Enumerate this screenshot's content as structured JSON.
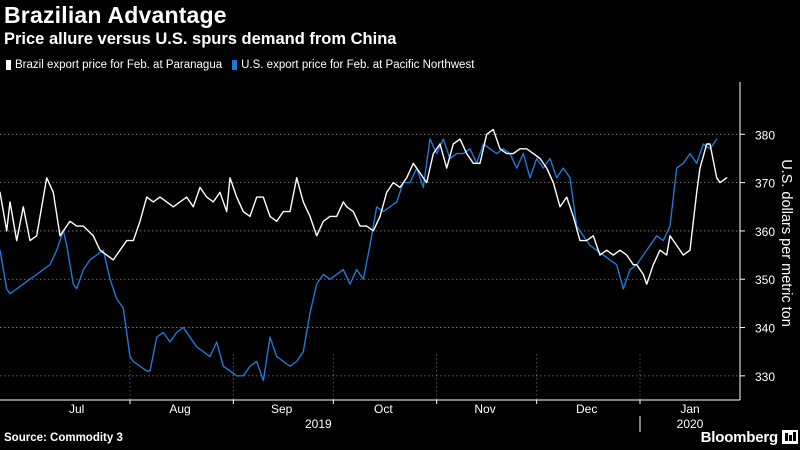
{
  "header": {
    "title": "Brazilian Advantage",
    "subtitle": "Price allure versus U.S. spurs demand from China"
  },
  "footer": {
    "source": "Source: Commodity 3",
    "brand": "Bloomberg"
  },
  "colors": {
    "background": "#000000",
    "brazil": "#ffffff",
    "us": "#1f78d7",
    "grid": "#888888",
    "axis": "#ffffff"
  },
  "chart_data": {
    "type": "line",
    "title": "Brazilian Advantage",
    "subtitle": "Price allure versus U.S. spurs demand from China",
    "ylabel": "U.S. dollars per metric ton",
    "y_axis_position": "right",
    "ylim": [
      325,
      390
    ],
    "yticks": [
      330,
      340,
      350,
      360,
      370,
      380
    ],
    "grid": "horizontal dotted",
    "legend_position": "top-left",
    "x_range": [
      "2019-06-23",
      "2020-01-31"
    ],
    "month_ticks": [
      {
        "label": "Jul",
        "start": "2019-07-01",
        "end": "2019-07-31"
      },
      {
        "label": "Aug",
        "start": "2019-08-01",
        "end": "2019-08-31"
      },
      {
        "label": "Sep",
        "start": "2019-09-01",
        "end": "2019-09-30"
      },
      {
        "label": "Oct",
        "start": "2019-10-01",
        "end": "2019-10-31"
      },
      {
        "label": "Nov",
        "start": "2019-11-01",
        "end": "2019-11-30"
      },
      {
        "label": "Dec",
        "start": "2019-12-01",
        "end": "2019-12-31"
      },
      {
        "label": "Jan",
        "start": "2020-01-01",
        "end": "2020-01-31"
      }
    ],
    "year_labels": [
      {
        "label": "2019",
        "start": "2019-06-23",
        "end": "2019-12-31"
      },
      {
        "label": "2020",
        "start": "2020-01-01",
        "end": "2020-01-31"
      }
    ],
    "series": [
      {
        "name": "Brazil export price for Feb. at Paranagua",
        "color": "#ffffff",
        "points": [
          [
            "2019-06-23",
            368
          ],
          [
            "2019-06-25",
            360
          ],
          [
            "2019-06-26",
            366
          ],
          [
            "2019-06-28",
            358
          ],
          [
            "2019-06-30",
            365
          ],
          [
            "2019-07-02",
            358
          ],
          [
            "2019-07-04",
            359
          ],
          [
            "2019-07-07",
            371
          ],
          [
            "2019-07-09",
            368
          ],
          [
            "2019-07-11",
            359
          ],
          [
            "2019-07-12",
            360
          ],
          [
            "2019-07-14",
            362
          ],
          [
            "2019-07-16",
            361
          ],
          [
            "2019-07-18",
            361
          ],
          [
            "2019-07-21",
            359
          ],
          [
            "2019-07-23",
            356
          ],
          [
            "2019-07-25",
            355
          ],
          [
            "2019-07-27",
            354
          ],
          [
            "2019-07-29",
            356
          ],
          [
            "2019-07-31",
            358
          ],
          [
            "2019-08-02",
            358
          ],
          [
            "2019-08-04",
            362
          ],
          [
            "2019-08-06",
            367
          ],
          [
            "2019-08-08",
            366
          ],
          [
            "2019-08-10",
            367
          ],
          [
            "2019-08-12",
            366
          ],
          [
            "2019-08-14",
            365
          ],
          [
            "2019-08-16",
            366
          ],
          [
            "2019-08-18",
            367
          ],
          [
            "2019-08-20",
            365
          ],
          [
            "2019-08-22",
            369
          ],
          [
            "2019-08-24",
            367
          ],
          [
            "2019-08-26",
            366
          ],
          [
            "2019-08-28",
            368
          ],
          [
            "2019-08-30",
            364
          ],
          [
            "2019-08-31",
            371
          ],
          [
            "2019-09-02",
            367
          ],
          [
            "2019-09-04",
            364
          ],
          [
            "2019-09-06",
            363
          ],
          [
            "2019-09-08",
            367
          ],
          [
            "2019-09-10",
            367
          ],
          [
            "2019-09-12",
            363
          ],
          [
            "2019-09-14",
            362
          ],
          [
            "2019-09-16",
            364
          ],
          [
            "2019-09-18",
            364
          ],
          [
            "2019-09-20",
            371
          ],
          [
            "2019-09-22",
            366
          ],
          [
            "2019-09-24",
            363
          ],
          [
            "2019-09-26",
            359
          ],
          [
            "2019-09-28",
            362
          ],
          [
            "2019-09-30",
            363
          ],
          [
            "2019-10-02",
            363
          ],
          [
            "2019-10-04",
            366
          ],
          [
            "2019-10-05",
            365
          ],
          [
            "2019-10-07",
            364
          ],
          [
            "2019-10-09",
            361
          ],
          [
            "2019-10-11",
            361
          ],
          [
            "2019-10-13",
            360
          ],
          [
            "2019-10-15",
            363
          ],
          [
            "2019-10-17",
            368
          ],
          [
            "2019-10-19",
            370
          ],
          [
            "2019-10-21",
            369
          ],
          [
            "2019-10-23",
            371
          ],
          [
            "2019-10-25",
            374
          ],
          [
            "2019-10-27",
            372
          ],
          [
            "2019-10-29",
            370
          ],
          [
            "2019-10-31",
            376
          ],
          [
            "2019-11-02",
            378
          ],
          [
            "2019-11-04",
            373
          ],
          [
            "2019-11-06",
            378
          ],
          [
            "2019-11-08",
            379
          ],
          [
            "2019-11-10",
            376
          ],
          [
            "2019-11-12",
            374
          ],
          [
            "2019-11-14",
            374
          ],
          [
            "2019-11-16",
            380
          ],
          [
            "2019-11-18",
            381
          ],
          [
            "2019-11-20",
            377
          ],
          [
            "2019-11-22",
            376
          ],
          [
            "2019-11-24",
            376
          ],
          [
            "2019-11-26",
            377
          ],
          [
            "2019-11-28",
            377
          ],
          [
            "2019-11-30",
            376
          ],
          [
            "2019-12-02",
            375
          ],
          [
            "2019-12-04",
            373
          ],
          [
            "2019-12-06",
            370
          ],
          [
            "2019-12-08",
            365
          ],
          [
            "2019-12-10",
            367
          ],
          [
            "2019-12-12",
            363
          ],
          [
            "2019-12-14",
            358
          ],
          [
            "2019-12-16",
            358
          ],
          [
            "2019-12-18",
            359
          ],
          [
            "2019-12-20",
            355
          ],
          [
            "2019-12-22",
            356
          ],
          [
            "2019-12-24",
            355
          ],
          [
            "2019-12-26",
            356
          ],
          [
            "2019-12-28",
            355
          ],
          [
            "2019-12-30",
            353
          ],
          [
            "2019-12-31",
            353
          ],
          [
            "2020-01-02",
            351
          ],
          [
            "2020-01-03",
            349
          ],
          [
            "2020-01-05",
            353
          ],
          [
            "2020-01-07",
            356
          ],
          [
            "2020-01-09",
            355
          ],
          [
            "2020-01-10",
            359
          ],
          [
            "2020-01-12",
            357
          ],
          [
            "2020-01-14",
            355
          ],
          [
            "2020-01-16",
            356
          ],
          [
            "2020-01-18",
            368
          ],
          [
            "2020-01-19",
            373
          ],
          [
            "2020-01-21",
            378
          ],
          [
            "2020-01-22",
            378
          ],
          [
            "2020-01-24",
            371
          ],
          [
            "2020-01-25",
            370
          ],
          [
            "2020-01-27",
            371
          ]
        ]
      },
      {
        "name": "U.S. export price for Feb. at Pacific Northwest",
        "color": "#1f78d7",
        "points": [
          [
            "2019-06-23",
            356
          ],
          [
            "2019-06-25",
            348
          ],
          [
            "2019-06-26",
            347
          ],
          [
            "2019-06-28",
            348
          ],
          [
            "2019-06-30",
            349
          ],
          [
            "2019-07-02",
            350
          ],
          [
            "2019-07-04",
            351
          ],
          [
            "2019-07-06",
            352
          ],
          [
            "2019-07-08",
            353
          ],
          [
            "2019-07-10",
            356
          ],
          [
            "2019-07-12",
            360
          ],
          [
            "2019-07-13",
            357
          ],
          [
            "2019-07-15",
            349
          ],
          [
            "2019-07-16",
            348
          ],
          [
            "2019-07-18",
            352
          ],
          [
            "2019-07-20",
            354
          ],
          [
            "2019-07-22",
            355
          ],
          [
            "2019-07-24",
            356
          ],
          [
            "2019-07-26",
            350
          ],
          [
            "2019-07-28",
            346
          ],
          [
            "2019-07-30",
            344
          ],
          [
            "2019-08-01",
            334
          ],
          [
            "2019-08-02",
            333
          ],
          [
            "2019-08-04",
            332
          ],
          [
            "2019-08-06",
            331
          ],
          [
            "2019-08-07",
            331
          ],
          [
            "2019-08-09",
            338
          ],
          [
            "2019-08-11",
            339
          ],
          [
            "2019-08-13",
            337
          ],
          [
            "2019-08-15",
            339
          ],
          [
            "2019-08-17",
            340
          ],
          [
            "2019-08-19",
            338
          ],
          [
            "2019-08-21",
            336
          ],
          [
            "2019-08-23",
            335
          ],
          [
            "2019-08-25",
            334
          ],
          [
            "2019-08-27",
            337
          ],
          [
            "2019-08-29",
            332
          ],
          [
            "2019-08-31",
            331
          ],
          [
            "2019-09-02",
            330
          ],
          [
            "2019-09-04",
            330
          ],
          [
            "2019-09-06",
            332
          ],
          [
            "2019-09-08",
            333
          ],
          [
            "2019-09-10",
            329
          ],
          [
            "2019-09-12",
            338
          ],
          [
            "2019-09-14",
            334
          ],
          [
            "2019-09-16",
            333
          ],
          [
            "2019-09-18",
            332
          ],
          [
            "2019-09-20",
            333
          ],
          [
            "2019-09-22",
            335
          ],
          [
            "2019-09-24",
            343
          ],
          [
            "2019-09-26",
            349
          ],
          [
            "2019-09-28",
            351
          ],
          [
            "2019-09-30",
            350
          ],
          [
            "2019-10-02",
            351
          ],
          [
            "2019-10-04",
            352
          ],
          [
            "2019-10-06",
            349
          ],
          [
            "2019-10-08",
            352
          ],
          [
            "2019-10-10",
            350
          ],
          [
            "2019-10-12",
            357
          ],
          [
            "2019-10-14",
            365
          ],
          [
            "2019-10-16",
            364
          ],
          [
            "2019-10-18",
            365
          ],
          [
            "2019-10-20",
            366
          ],
          [
            "2019-10-22",
            370
          ],
          [
            "2019-10-24",
            370
          ],
          [
            "2019-10-26",
            373
          ],
          [
            "2019-10-28",
            369
          ],
          [
            "2019-10-30",
            379
          ],
          [
            "2019-11-01",
            376
          ],
          [
            "2019-11-03",
            379
          ],
          [
            "2019-11-05",
            375
          ],
          [
            "2019-11-07",
            376
          ],
          [
            "2019-11-09",
            376
          ],
          [
            "2019-11-11",
            377
          ],
          [
            "2019-11-13",
            374
          ],
          [
            "2019-11-15",
            378
          ],
          [
            "2019-11-17",
            377
          ],
          [
            "2019-11-19",
            376
          ],
          [
            "2019-11-21",
            377
          ],
          [
            "2019-11-23",
            376
          ],
          [
            "2019-11-25",
            373
          ],
          [
            "2019-11-27",
            376
          ],
          [
            "2019-11-29",
            371
          ],
          [
            "2019-12-01",
            375
          ],
          [
            "2019-12-03",
            373
          ],
          [
            "2019-12-05",
            375
          ],
          [
            "2019-12-07",
            371
          ],
          [
            "2019-12-09",
            373
          ],
          [
            "2019-12-11",
            371
          ],
          [
            "2019-12-13",
            361
          ],
          [
            "2019-12-15",
            359
          ],
          [
            "2019-12-17",
            357
          ],
          [
            "2019-12-19",
            356
          ],
          [
            "2019-12-21",
            355
          ],
          [
            "2019-12-23",
            354
          ],
          [
            "2019-12-25",
            353
          ],
          [
            "2019-12-27",
            348
          ],
          [
            "2019-12-29",
            352
          ],
          [
            "2019-12-31",
            353
          ],
          [
            "2020-01-02",
            355
          ],
          [
            "2020-01-04",
            357
          ],
          [
            "2020-01-06",
            359
          ],
          [
            "2020-01-08",
            358
          ],
          [
            "2020-01-10",
            361
          ],
          [
            "2020-01-12",
            373
          ],
          [
            "2020-01-14",
            374
          ],
          [
            "2020-01-16",
            376
          ],
          [
            "2020-01-18",
            374
          ],
          [
            "2020-01-20",
            378
          ],
          [
            "2020-01-22",
            377
          ],
          [
            "2020-01-24",
            379
          ]
        ]
      }
    ]
  }
}
